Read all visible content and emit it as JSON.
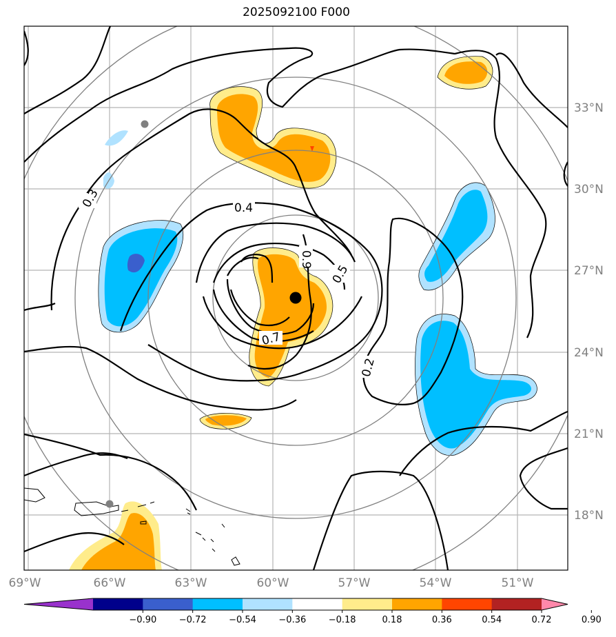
{
  "title": "2025092100 F000",
  "map": {
    "lat_labels": [
      "33°N",
      "30°N",
      "27°N",
      "24°N",
      "21°N",
      "18°N"
    ],
    "lon_labels": [
      "69°W",
      "66°W",
      "63°W",
      "60°W",
      "57°W",
      "54°W",
      "51°W"
    ],
    "contour_labels": [
      "0.3",
      "0.4",
      "0.9",
      "0.5",
      "0.7",
      "0.2"
    ],
    "center_marker": "storm-center",
    "range_rings": 4
  },
  "colorbar": {
    "ticks": [
      "−0.90",
      "−0.72",
      "−0.54",
      "−0.36",
      "−0.18",
      "0.18",
      "0.36",
      "0.54",
      "0.72",
      "0.90"
    ],
    "colors": [
      "#9932CC",
      "#00008B",
      "#3A5FCD",
      "#00BFFF",
      "#B0E2FF",
      "#FFFFFF",
      "#FFEC8B",
      "#FFA500",
      "#FF4500",
      "#B22222",
      "#FF88AA"
    ]
  }
}
